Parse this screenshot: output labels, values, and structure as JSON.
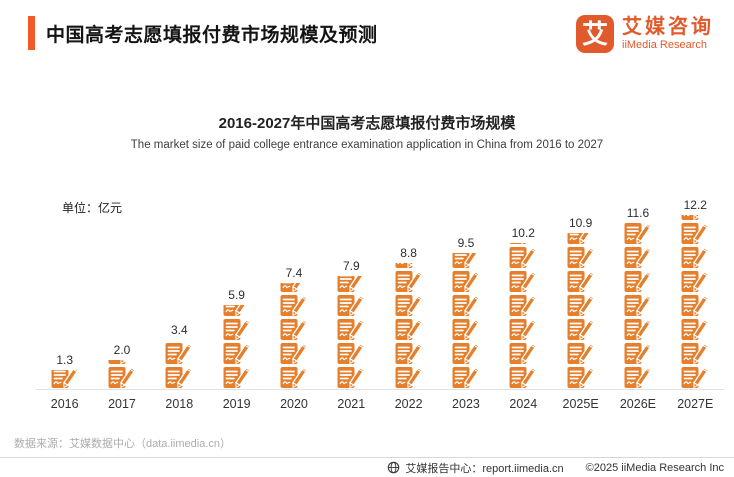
{
  "header": {
    "title": "中国高考志愿填报付费市场规模及预测"
  },
  "logo": {
    "symbol": "艾",
    "name_cn": "艾媒咨询",
    "name_en": "iiMedia Research"
  },
  "chart": {
    "title": "2016-2027年中国高考志愿填报付费市场规模",
    "subtitle": "The market size of paid college entrance examination application in China from 2016 to 2027",
    "unit_label": "单位：亿元"
  },
  "chart_data": {
    "type": "bar",
    "title": "2016-2027年中国高考志愿填报付费市场规模",
    "categories": [
      "2016",
      "2017",
      "2018",
      "2019",
      "2020",
      "2021",
      "2022",
      "2023",
      "2024",
      "2025E",
      "2026E",
      "2027E"
    ],
    "values": [
      1.3,
      2.0,
      3.4,
      5.9,
      7.4,
      7.9,
      8.8,
      9.5,
      10.2,
      10.9,
      11.6,
      12.2
    ],
    "xlabel": "",
    "ylabel": "亿元",
    "ylim": [
      0,
      13
    ],
    "grid": false,
    "legend": "none",
    "bar_style": "stacked document-and-pencil pictogram icons",
    "bar_color": "#E57F2C"
  },
  "footer": {
    "source": "数据来源：艾媒数据中心（data.iimedia.cn）",
    "report_center": "艾媒报告中心：report.iimedia.cn",
    "copyright": "©2025  iiMedia Research Inc"
  },
  "colors": {
    "accent": "#F25B29",
    "brand": "#E05A2B",
    "bar": "#E57F2C",
    "axis_line": "#e3e3e3",
    "source_text": "#aaadb0"
  }
}
